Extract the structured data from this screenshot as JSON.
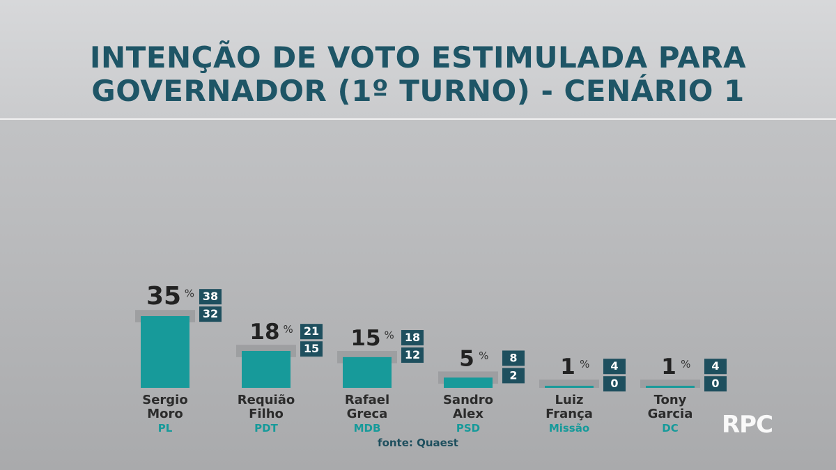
{
  "title_line1": "INTENÇÃO DE VOTO ESTIMULADA PARA",
  "title_line2": "GOVERNADOR (1º TURNO) - CENÁRIO 1",
  "source": "fonte: Quaest",
  "logo": "RPC",
  "colors": {
    "title": "#1e5566",
    "bar": "#179a9a",
    "margin_band": "#9a9b9d",
    "range_box": "#1e4f5e",
    "party": "#169a9a"
  },
  "chart_data": {
    "type": "bar",
    "title": "INTENÇÃO DE VOTO ESTIMULADA PARA GOVERNADOR (1º TURNO) - CENÁRIO 1",
    "unit": "%",
    "ylim": [
      0,
      38
    ],
    "grid": false,
    "categories": [
      "Sergio Moro",
      "Requião Filho",
      "Rafael Greca",
      "Sandro Alex",
      "Luiz França",
      "Tony Garcia"
    ],
    "candidates": [
      {
        "first": "Sergio",
        "last": "Moro",
        "party": "PL",
        "value": 35,
        "max": 38,
        "min": 32
      },
      {
        "first": "Requião",
        "last": "Filho",
        "party": "PDT",
        "value": 18,
        "max": 21,
        "min": 15
      },
      {
        "first": "Rafael",
        "last": "Greca",
        "party": "MDB",
        "value": 15,
        "max": 18,
        "min": 12
      },
      {
        "first": "Sandro",
        "last": "Alex",
        "party": "PSD",
        "value": 5,
        "max": 8,
        "min": 2
      },
      {
        "first": "Luiz",
        "last": "França",
        "party": "Missão",
        "value": 1,
        "max": 4,
        "min": 0
      },
      {
        "first": "Tony",
        "last": "Garcia",
        "party": "DC",
        "value": 1,
        "max": 4,
        "min": 0
      }
    ]
  }
}
